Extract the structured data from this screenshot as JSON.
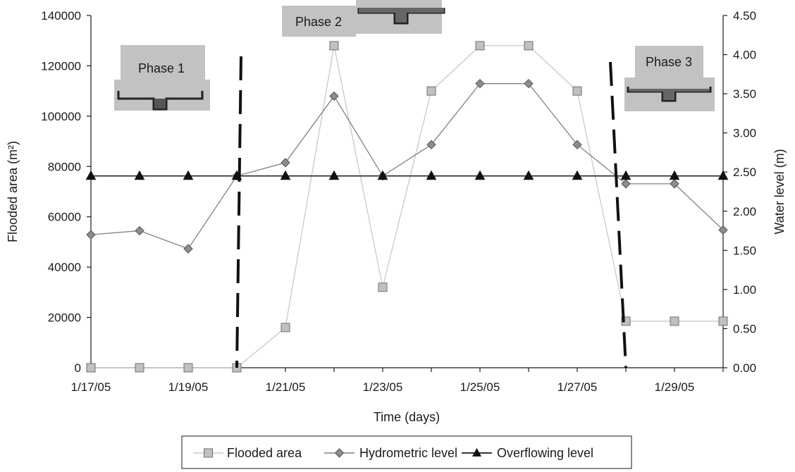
{
  "chart_data": {
    "type": "line",
    "xlabel": "Time (days)",
    "ylabel_left": "Flooded area (m²)",
    "ylabel_right": "Water level (m)",
    "x": [
      "1/17/05",
      "1/18/05",
      "1/19/05",
      "1/20/05",
      "1/21/05",
      "1/22/05",
      "1/23/05",
      "1/24/05",
      "1/25/05",
      "1/26/05",
      "1/27/05",
      "1/28/05",
      "1/29/05",
      "1/30/05"
    ],
    "x_tick_labels": [
      "1/17/05",
      "1/19/05",
      "1/21/05",
      "1/23/05",
      "1/25/05",
      "1/27/05",
      "1/29/05"
    ],
    "ylim_left": [
      0,
      140000
    ],
    "ylim_right": [
      0,
      4.5
    ],
    "y_left_ticks": [
      "0",
      "20000",
      "40000",
      "60000",
      "80000",
      "100000",
      "120000",
      "140000"
    ],
    "y_right_ticks": [
      "0.00",
      "0.50",
      "1.00",
      "1.50",
      "2.00",
      "2.50",
      "3.00",
      "3.50",
      "4.00",
      "4.50"
    ],
    "grid": false,
    "legend_position": "bottom",
    "series": [
      {
        "name": "Flooded area",
        "axis": "left",
        "marker": "square",
        "color": "#c0c0c0",
        "values": [
          0,
          0,
          0,
          0,
          16000,
          128000,
          32000,
          110000,
          128000,
          128000,
          110000,
          18500,
          18500,
          18500
        ]
      },
      {
        "name": "Hydrometric level",
        "axis": "right",
        "marker": "diamond",
        "color": "#808080",
        "values": [
          1.7,
          1.75,
          1.52,
          2.45,
          2.62,
          3.47,
          2.45,
          2.85,
          3.63,
          3.63,
          2.85,
          2.35,
          2.35,
          1.76
        ]
      },
      {
        "name": "Overflowing level",
        "axis": "right",
        "marker": "triangle",
        "color": "#1a1a1a",
        "values": [
          2.45,
          2.45,
          2.45,
          2.45,
          2.45,
          2.45,
          2.45,
          2.45,
          2.45,
          2.45,
          2.45,
          2.45,
          2.45,
          2.45
        ]
      }
    ],
    "phases": [
      {
        "label": "Phase 1"
      },
      {
        "label": "Phase 2"
      },
      {
        "label": "Phase 3"
      }
    ],
    "phase_boundaries": [
      "1/20/05",
      "1/28/05"
    ]
  }
}
